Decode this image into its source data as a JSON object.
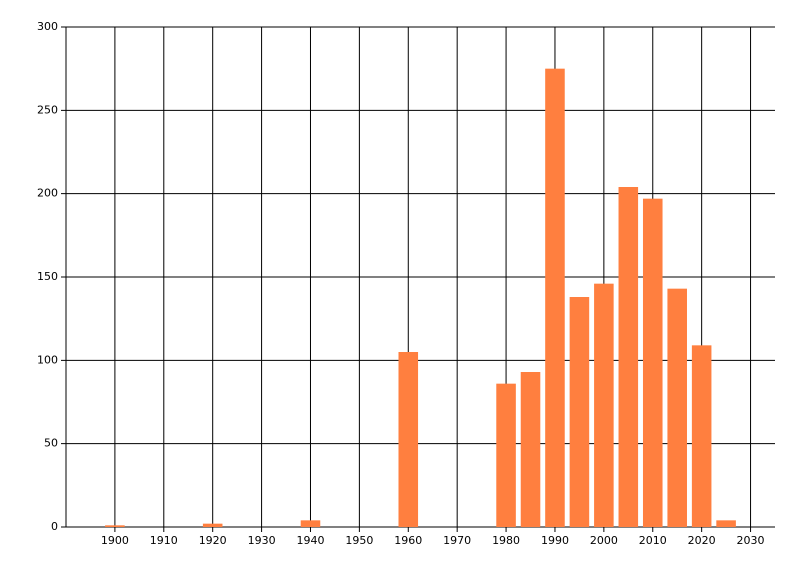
{
  "chart_data": {
    "type": "bar",
    "x": [
      1900,
      1920,
      1940,
      1960,
      1980,
      1985,
      1990,
      1995,
      2000,
      2005,
      2010,
      2015,
      2020,
      2025
    ],
    "values": [
      1,
      2,
      4,
      105,
      86,
      93,
      275,
      138,
      146,
      204,
      197,
      143,
      109,
      4
    ],
    "color": "#ff7f3f",
    "xlim": [
      1890,
      2035
    ],
    "xticks": [
      1900,
      1910,
      1920,
      1930,
      1940,
      1950,
      1960,
      1970,
      1980,
      1990,
      2000,
      2010,
      2020,
      2030
    ],
    "ylim": [
      0,
      300
    ],
    "yticks": [
      0,
      50,
      100,
      150,
      200,
      250,
      300
    ],
    "grid": true
  }
}
